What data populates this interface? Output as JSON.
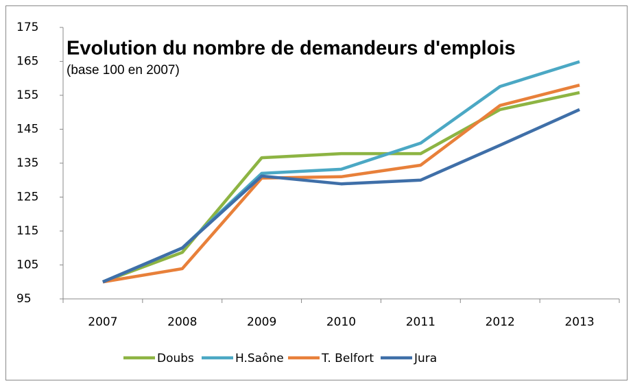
{
  "chart_data": {
    "type": "line",
    "title": "Evolution du nombre de demandeurs d'emplois",
    "subtitle": "(base 100 en 2007)",
    "categories": [
      "2007",
      "2008",
      "2009",
      "2010",
      "2011",
      "2012",
      "2013"
    ],
    "series": [
      {
        "name": "Doubs",
        "color": "#8db443",
        "values": [
          100,
          108.7,
          136.6,
          137.8,
          137.8,
          150.8,
          155.8
        ]
      },
      {
        "name": "H.Saône",
        "color": "#4ba8c4",
        "values": [
          100,
          110,
          132,
          133.2,
          140.9,
          157.6,
          164.9
        ]
      },
      {
        "name": "T. Belfort",
        "color": "#e8803a",
        "values": [
          100,
          103.9,
          130.6,
          131,
          134.4,
          152,
          158
        ]
      },
      {
        "name": "Jura",
        "color": "#3f6fa8",
        "values": [
          100,
          110,
          131.2,
          128.9,
          130,
          140.3,
          150.8
        ]
      }
    ],
    "ylim": [
      95,
      175
    ],
    "yticks": [
      95,
      105,
      115,
      125,
      135,
      145,
      155,
      165,
      175
    ],
    "grid": false,
    "legend": "bottom"
  }
}
